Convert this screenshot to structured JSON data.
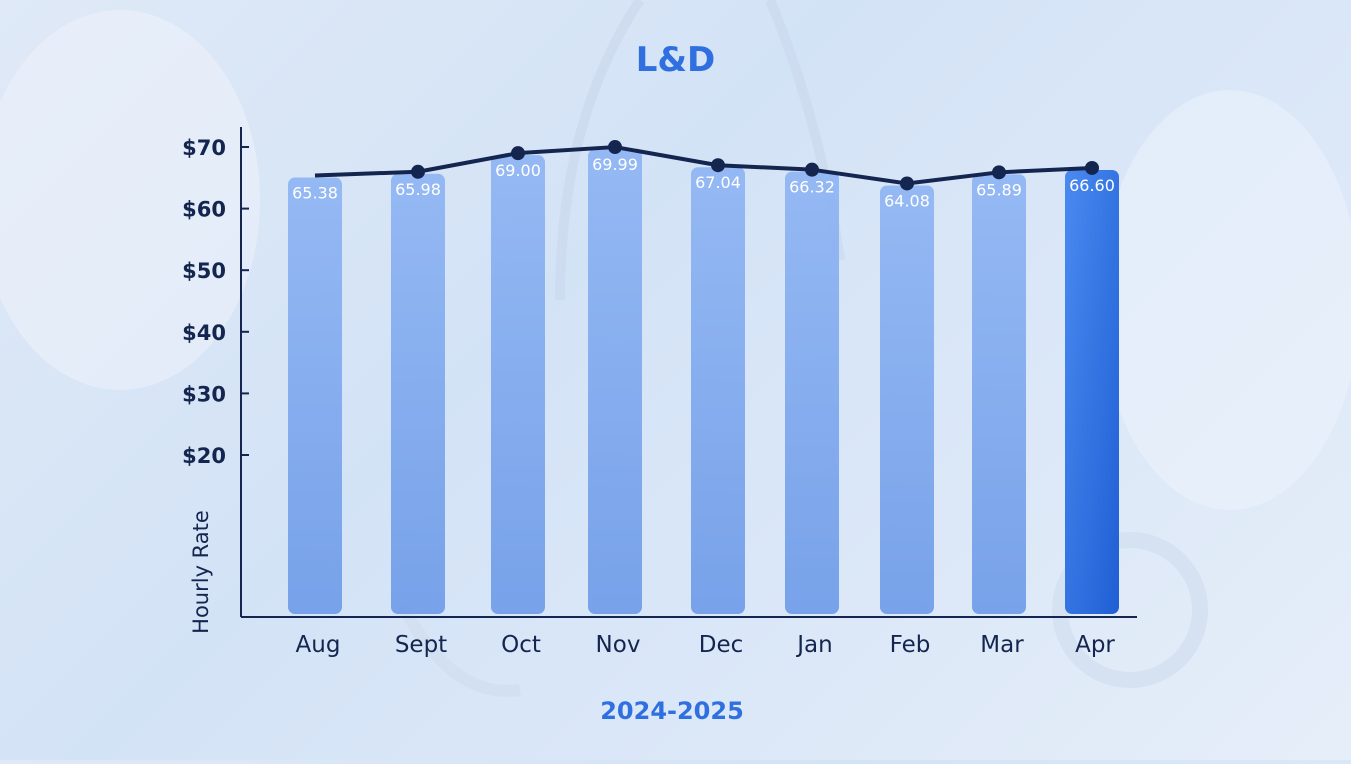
{
  "title": "L&D",
  "x_caption": "2024-2025",
  "colors": {
    "bar": "#7fa8ee",
    "bar_highlight": "#2c6fe0",
    "line": "#14264f",
    "text_dark": "#14264f",
    "accent": "#2f6fe0"
  },
  "chart_data": {
    "type": "bar",
    "title": "L&D",
    "xlabel": "2024-2025",
    "ylabel": "Hourly Rate",
    "categories": [
      "Aug",
      "Sept",
      "Oct",
      "Nov",
      "Dec",
      "Jan",
      "Feb",
      "Mar",
      "Apr"
    ],
    "values": [
      65.38,
      65.98,
      69.0,
      69.99,
      67.04,
      66.32,
      64.08,
      65.89,
      66.6
    ],
    "data_labels": [
      "65.38",
      "65.98",
      "69.00",
      "69.99",
      "67.04",
      "66.32",
      "64.08",
      "65.89",
      "66.60"
    ],
    "line_overlay": true,
    "highlight_category": "Apr",
    "y_ticks": [
      20,
      30,
      40,
      50,
      60,
      70
    ],
    "y_tick_labels": [
      "$20",
      "$30",
      "$40",
      "$50",
      "$60",
      "$70"
    ],
    "ylim": [
      0,
      70
    ],
    "grid": false,
    "legend": "none"
  }
}
